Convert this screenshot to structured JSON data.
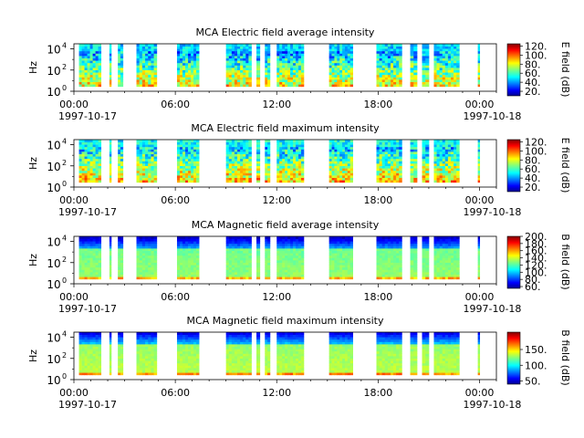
{
  "chart_data": [
    {
      "type": "heatmap",
      "title": "MCA  Electric field average intensity",
      "ylabel": "Hz",
      "yscale": "log",
      "ylim": [
        1,
        30000
      ],
      "yticks": [
        "10",
        "10",
        "10"
      ],
      "yexp": [
        "0",
        "2",
        "4"
      ],
      "xlim": [
        "1997-10-17 00:00",
        "1997-10-18 01:00"
      ],
      "xticks": [
        "00:00",
        "06:00",
        "12:00",
        "18:00",
        "00:00"
      ],
      "xdates": [
        "1997-10-17",
        "1997-10-18"
      ],
      "colorbar": {
        "label": "E field (dB)",
        "ticks": [
          "20.",
          "40.",
          "60.",
          "80.",
          "100.",
          "120."
        ],
        "range": [
          10,
          125
        ]
      }
    },
    {
      "type": "heatmap",
      "title": "MCA  Electric field maximum intensity",
      "ylabel": "Hz",
      "yscale": "log",
      "ylim": [
        1,
        30000
      ],
      "yticks": [
        "10",
        "10",
        "10"
      ],
      "yexp": [
        "0",
        "2",
        "4"
      ],
      "xlim": [
        "1997-10-17 00:00",
        "1997-10-18 01:00"
      ],
      "xticks": [
        "00:00",
        "06:00",
        "12:00",
        "18:00",
        "00:00"
      ],
      "xdates": [
        "1997-10-17",
        "1997-10-18"
      ],
      "colorbar": {
        "label": "E field (dB)",
        "ticks": [
          "20.",
          "40.",
          "60.",
          "80.",
          "100.",
          "120."
        ],
        "range": [
          10,
          125
        ]
      }
    },
    {
      "type": "heatmap",
      "title": "MCA  Magnetic field average intensity",
      "ylabel": "Hz",
      "yscale": "log",
      "ylim": [
        1,
        30000
      ],
      "yticks": [
        "10",
        "10",
        "10"
      ],
      "yexp": [
        "0",
        "2",
        "4"
      ],
      "xlim": [
        "1997-10-17 00:00",
        "1997-10-18 01:00"
      ],
      "xticks": [
        "00:00",
        "06:00",
        "12:00",
        "18:00",
        "00:00"
      ],
      "xdates": [
        "1997-10-17",
        "1997-10-18"
      ],
      "colorbar": {
        "label": "B field (dB)",
        "ticks": [
          "60.",
          "80.",
          "100.",
          "120.",
          "140.",
          "160.",
          "180.",
          "200."
        ],
        "range": [
          55,
          200
        ]
      }
    },
    {
      "type": "heatmap",
      "title": "MCA  Magnetic field maximum intensity",
      "ylabel": "Hz",
      "yscale": "log",
      "ylim": [
        1,
        30000
      ],
      "yticks": [
        "10",
        "10",
        "10"
      ],
      "yexp": [
        "0",
        "2",
        "4"
      ],
      "xlim": [
        "1997-10-17 00:00",
        "1997-10-18 01:00"
      ],
      "xticks": [
        "00:00",
        "06:00",
        "12:00",
        "18:00",
        "00:00"
      ],
      "xdates": [
        "1997-10-17",
        "1997-10-18"
      ],
      "colorbar": {
        "label": "B field (dB)",
        "ticks": [
          "50.",
          "100.",
          "150."
        ],
        "range": [
          40,
          205
        ]
      }
    }
  ],
  "data_intervals_hours": [
    [
      0.3,
      1.6
    ],
    [
      2.1,
      2.2
    ],
    [
      2.6,
      2.9
    ],
    [
      3.7,
      4.9
    ],
    [
      6.1,
      7.4
    ],
    [
      9.0,
      10.5
    ],
    [
      10.8,
      11.0
    ],
    [
      11.3,
      11.6
    ],
    [
      12.0,
      13.6
    ],
    [
      15.1,
      16.5
    ],
    [
      17.9,
      19.4
    ],
    [
      19.9,
      20.3
    ],
    [
      20.6,
      21.0
    ],
    [
      21.3,
      22.8
    ],
    [
      23.9,
      24.0
    ]
  ]
}
